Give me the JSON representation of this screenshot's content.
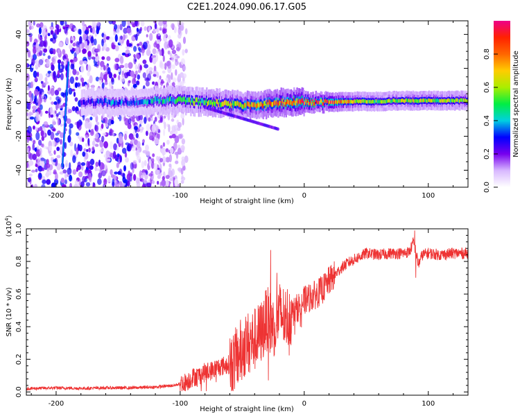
{
  "title": "C2E1.2024.090.06.17.G05",
  "colors": {
    "snr_line": "#ee3333",
    "axis": "#000000",
    "colorbar": [
      "#ffffff",
      "#d8b8ff",
      "#7700ee",
      "#0000ff",
      "#00d0e0",
      "#00ee44",
      "#aaee00",
      "#ffcc00",
      "#ff6600",
      "#ff2200",
      "#ee0088"
    ]
  },
  "chart_data": [
    {
      "type": "heatmap",
      "name": "spectrogram",
      "xlabel": "Height of straight line (km)",
      "ylabel": "Frequency (Hz)",
      "xlim": [
        -224,
        132
      ],
      "ylim": [
        -50,
        48
      ],
      "xticks": [
        -200,
        -100,
        0,
        100
      ],
      "xtick_labels": [
        "-200",
        "-100",
        "0",
        "100"
      ],
      "yticks": [
        -40,
        -20,
        0,
        20,
        40
      ],
      "ytick_labels": [
        "-40",
        "-20",
        "0",
        "20",
        "40"
      ],
      "colorbar": {
        "label": "Normalized spectral amplitude",
        "range": [
          0,
          1
        ],
        "ticks": [
          0.0,
          0.2,
          0.4,
          0.6,
          0.8
        ],
        "tick_labels": [
          "0.0",
          "0.2",
          "0.4",
          "0.6",
          "0.8"
        ]
      },
      "features": {
        "noise_region_km": [
          -224,
          -95
        ],
        "doppler_line": {
          "start": [
            -195,
            -38
          ],
          "end": [
            -190,
            24
          ]
        },
        "signal_band": [
          [
            -180,
            0,
            0.25
          ],
          [
            -160,
            0,
            0.35
          ],
          [
            -140,
            0,
            0.3
          ],
          [
            -120,
            1,
            0.4
          ],
          [
            -100,
            1,
            0.5
          ],
          [
            -80,
            0,
            0.55
          ],
          [
            -60,
            -1,
            0.65
          ],
          [
            -40,
            -2,
            0.7
          ],
          [
            -20,
            0,
            0.8
          ],
          [
            0,
            0,
            0.9
          ],
          [
            20,
            0,
            0.85
          ],
          [
            40,
            0.5,
            0.6
          ],
          [
            60,
            0.5,
            0.55
          ],
          [
            80,
            1,
            0.6
          ],
          [
            100,
            1,
            0.6
          ],
          [
            132,
            1,
            0.55
          ]
        ],
        "tail_end": [
          -20,
          -16
        ]
      }
    },
    {
      "type": "line",
      "name": "snr",
      "xlabel": "Height of straight line (km)",
      "ylabel": "SNR (10 * v/v)",
      "y_scale_label": "(x10",
      "y_scale_exp": "4",
      "y_scale_close": ")",
      "xlim": [
        -224,
        132
      ],
      "ylim": [
        -0.02,
        1.0
      ],
      "xticks": [
        -200,
        -100,
        0,
        100
      ],
      "xtick_labels": [
        "-200",
        "-100",
        "0",
        "100"
      ],
      "yticks": [
        0.0,
        0.2,
        0.4,
        0.6,
        0.8,
        1.0
      ],
      "ytick_labels": [
        "0.0",
        "0.2",
        "0.4",
        "0.6",
        "0.8",
        "1.0"
      ],
      "series": [
        {
          "name": "SNR",
          "x": [
            -224,
            -200,
            -180,
            -160,
            -140,
            -120,
            -105,
            -100,
            -95,
            -90,
            -85,
            -80,
            -75,
            -70,
            -65,
            -60,
            -55,
            -50,
            -45,
            -40,
            -35,
            -30,
            -25,
            -20,
            -15,
            -10,
            -5,
            0,
            5,
            10,
            15,
            20,
            25,
            30,
            35,
            40,
            45,
            50,
            60,
            70,
            80,
            85,
            88,
            90,
            92,
            95,
            100,
            110,
            120,
            132
          ],
          "y": [
            0.02,
            0.025,
            0.022,
            0.025,
            0.025,
            0.03,
            0.04,
            0.05,
            0.06,
            0.09,
            0.1,
            0.12,
            0.13,
            0.15,
            0.16,
            0.17,
            0.2,
            0.27,
            0.3,
            0.32,
            0.36,
            0.45,
            0.4,
            0.48,
            0.45,
            0.48,
            0.52,
            0.56,
            0.58,
            0.6,
            0.63,
            0.68,
            0.72,
            0.76,
            0.79,
            0.81,
            0.83,
            0.85,
            0.84,
            0.85,
            0.85,
            0.86,
            0.92,
            0.86,
            0.78,
            0.84,
            0.85,
            0.84,
            0.85,
            0.85
          ]
        }
      ],
      "spikes": [
        {
          "x": -27,
          "y": 0.87
        },
        {
          "x": -22,
          "y": 0.73
        },
        {
          "x": 89,
          "y": 0.99
        },
        {
          "x": 90,
          "y": 0.7
        }
      ]
    }
  ]
}
